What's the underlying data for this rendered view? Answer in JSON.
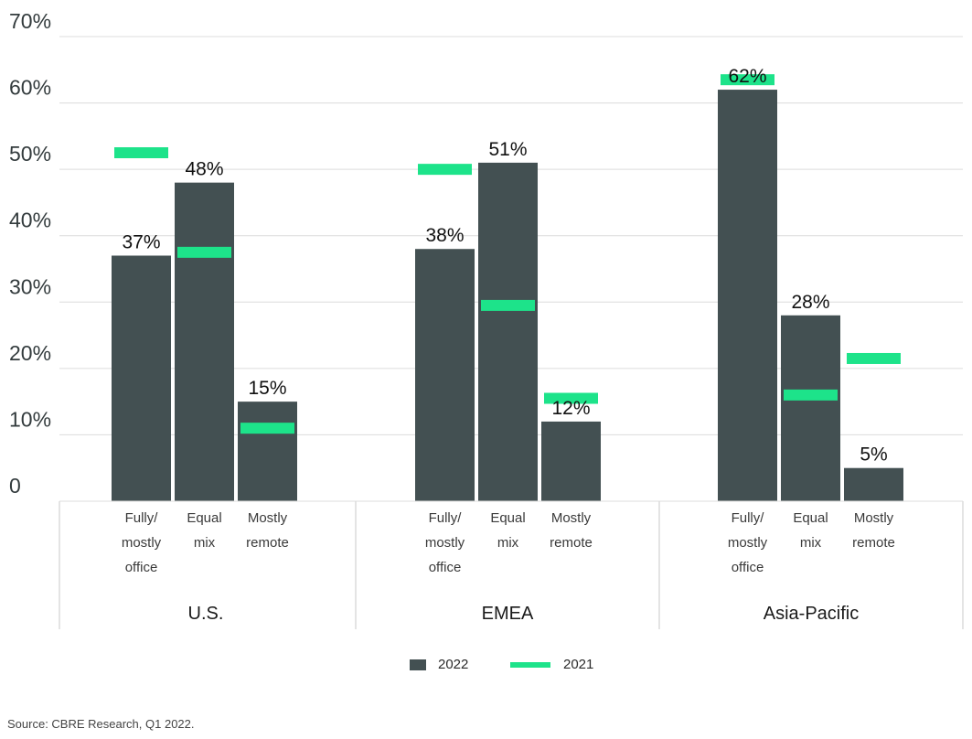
{
  "chart_data": {
    "type": "bar",
    "groups": [
      {
        "name": "U.S.",
        "categories": [
          "Fully/ mostly office",
          "Equal mix",
          "Mostly remote"
        ],
        "values_2022": [
          37,
          48,
          15
        ],
        "values_2021": [
          52.5,
          37.5,
          11
        ],
        "labels": [
          "37%",
          "48%",
          "15%"
        ]
      },
      {
        "name": "EMEA",
        "categories": [
          "Fully/ mostly office",
          "Equal mix",
          "Mostly remote"
        ],
        "values_2022": [
          38,
          51,
          12
        ],
        "values_2021": [
          50,
          29.5,
          15.5
        ],
        "labels": [
          "38%",
          "51%",
          "12%"
        ]
      },
      {
        "name": "Asia-Pacific",
        "categories": [
          "Fully/ mostly office",
          "Equal mix",
          "Mostly remote"
        ],
        "values_2022": [
          62,
          28,
          5
        ],
        "values_2021": [
          63.5,
          16,
          21.5
        ],
        "labels": [
          "62%",
          "28%",
          "5%"
        ]
      }
    ],
    "series": [
      {
        "name": "2022",
        "color": "#435052"
      },
      {
        "name": "2021",
        "color": "#1de38a"
      }
    ],
    "y_ticks": [
      "0",
      "10%",
      "20%",
      "30%",
      "40%",
      "50%",
      "60%",
      "70%"
    ],
    "ylim": [
      0,
      70
    ],
    "grid": true,
    "legend_position": "bottom-center"
  },
  "source": "Source: CBRE Research, Q1 2022."
}
